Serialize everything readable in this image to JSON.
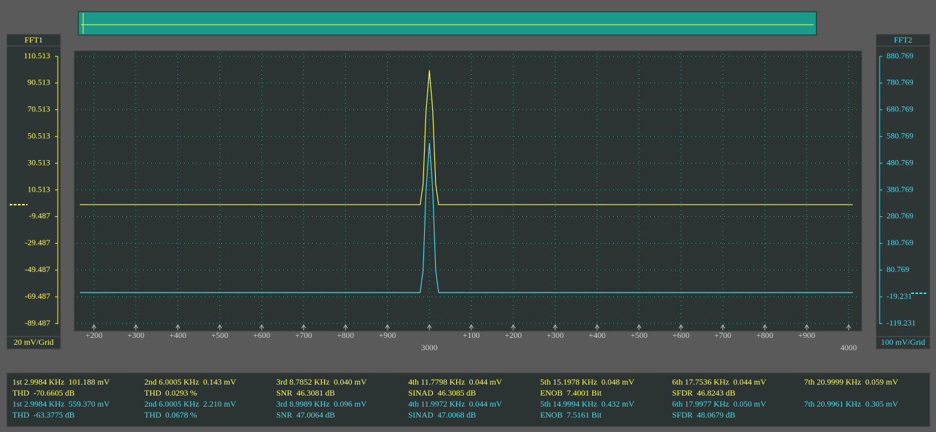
{
  "chart_data": {
    "type": "line",
    "x": [
      2166,
      2978,
      2985,
      2992,
      3000,
      3008,
      3015,
      3022,
      4010
    ],
    "series": [
      {
        "name": "FFT1",
        "color": "#ffff40",
        "values": [
          -0.5,
          -0.5,
          15,
          70,
          100,
          70,
          15,
          -0.5,
          -0.5
        ]
      },
      {
        "name": "FFT2",
        "color": "#40e0f0",
        "axis": "y2",
        "values": [
          -3.5,
          -3.5,
          80,
          380,
          557,
          380,
          80,
          -3.5,
          -3.5
        ]
      }
    ],
    "xlim": [
      2166,
      4010
    ],
    "xticks": [
      {
        "value": 2200,
        "label": "+200"
      },
      {
        "value": 2300,
        "label": "+300"
      },
      {
        "value": 2400,
        "label": "+400"
      },
      {
        "value": 2500,
        "label": "+500"
      },
      {
        "value": 2600,
        "label": "+600"
      },
      {
        "value": 2700,
        "label": "+700"
      },
      {
        "value": 2800,
        "label": "+800"
      },
      {
        "value": 2900,
        "label": "+900"
      },
      3000,
      {
        "value": 3100,
        "label": "+100"
      },
      {
        "value": 3200,
        "label": "+200"
      },
      {
        "value": 3300,
        "label": "+300"
      },
      {
        "value": 3400,
        "label": "+400"
      },
      {
        "value": 3500,
        "label": "+500"
      },
      {
        "value": 3600,
        "label": "+600"
      },
      {
        "value": 3700,
        "label": "+700"
      },
      {
        "value": 3800,
        "label": "+800"
      },
      {
        "value": 3900,
        "label": "+900"
      },
      4000
    ],
    "ylim": [
      -89.487,
      110.513
    ],
    "yticks": [
      110.513,
      90.513,
      70.513,
      50.513,
      30.513,
      10.513,
      -9.487,
      -29.487,
      -49.487,
      -69.487,
      -89.487
    ],
    "y2lim": [
      -119.231,
      880.769
    ],
    "y2ticks": [
      880.769,
      780.769,
      680.769,
      580.769,
      480.769,
      380.769,
      280.769,
      180.769,
      80.769,
      -19.231,
      -119.231
    ],
    "grid": true,
    "left_axis": {
      "title": "FFT1",
      "scale": "20 mV/Grid"
    },
    "right_axis": {
      "title": "FFT2",
      "scale": "100 mV/Grid"
    }
  },
  "measurements": [
    {
      "color": "#ffff40",
      "cells": [
        "1st 2.9984 KHz  101.188 mV",
        "2nd 6.0005 KHz  0.143 mV",
        "3rd 8.7852 KHz  0.040 mV",
        "4th 11.7798 KHz  0.044 mV",
        "5th 15.1978 KHz  0.048 mV",
        "6th 17.7536 KHz  0.044 mV",
        "7th 20.9999 KHz  0.059 mV"
      ]
    },
    {
      "color": "#ffff40",
      "cells": [
        "THD  -70.6605 dB",
        "THD  0.0293 %",
        "SNR  46.3081 dB",
        "SINAD  46.3085 dB",
        "ENOB  7.4001 Bit",
        "SFDR  46.8243 dB"
      ]
    },
    {
      "color": "#40e0f0",
      "cells": [
        "1st 2.9984 KHz  559.370 mV",
        "2nd 6.0005 KHz  2.210 mV",
        "3rd 8.9989 KHz  0.096 mV",
        "4th 11.9972 KHz  0.044 mV",
        "5th 14.9994 KHz  0.432 mV",
        "6th 17.9977 KHz  0.050 mV",
        "7th 20.9961 KHz  0.305 mV"
      ]
    },
    {
      "color": "#40e0f0",
      "cells": [
        "THD  -63.3775 dB",
        "THD  0.0678 %",
        "SNR  47.0064 dB",
        "SINAD  47.0068 dB",
        "ENOB  7.5161 Bit",
        "SFDR  48.0679 dB"
      ]
    }
  ]
}
